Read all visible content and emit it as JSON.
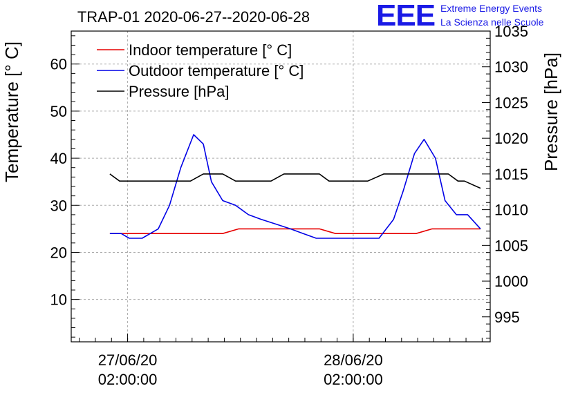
{
  "chart_data": {
    "type": "line",
    "title": "TRAP-01 2020-06-27--2020-06-28",
    "ylabel": "Temperature [° C]",
    "y2label": "Pressure [hPa]",
    "ylim": [
      1,
      67
    ],
    "y2lim": [
      991.5,
      1035
    ],
    "yticks": [
      10,
      20,
      30,
      40,
      50,
      60
    ],
    "y2ticks": [
      995,
      1000,
      1005,
      1010,
      1015,
      1020,
      1025,
      1030,
      1035
    ],
    "xlim": [
      0,
      26
    ],
    "xticks": [
      {
        "pos": 3.5,
        "line1": "27/06/20",
        "line2": "02:00:00"
      },
      {
        "pos": 17.5,
        "line1": "28/06/20",
        "line2": "02:00:00"
      }
    ],
    "grid": true,
    "legend": "top-left",
    "series": [
      {
        "name": "Indoor temperature [° C]",
        "color": "#e60000",
        "axis": "left",
        "x": [
          2.4,
          3.4,
          4.4,
          5.4,
          6.4,
          7.4,
          8.4,
          9.4,
          10.4,
          11.4,
          12.4,
          13.4,
          14.4,
          15.4,
          16.4,
          17.4,
          18.4,
          19.4,
          20.4,
          21.4,
          22.4,
          23.4,
          24.4,
          25.4
        ],
        "values": [
          24,
          24,
          24,
          24,
          24,
          24,
          24,
          24,
          25,
          25,
          25,
          25,
          25,
          25,
          24,
          24,
          24,
          24,
          24,
          24,
          25,
          25,
          25,
          25
        ]
      },
      {
        "name": "Outdoor temperature [° C]",
        "color": "#0000e6",
        "axis": "left",
        "x": [
          2.4,
          3.1,
          3.6,
          4.4,
          5.4,
          6.1,
          6.8,
          7.6,
          8.2,
          8.7,
          9.4,
          10.2,
          11.0,
          11.8,
          12.7,
          13.6,
          14.4,
          15.2,
          15.9,
          16.5,
          17.3,
          18.2,
          19.1,
          20.0,
          20.6,
          21.3,
          21.9,
          22.6,
          23.2,
          23.9,
          24.6,
          25.4
        ],
        "values": [
          24,
          24,
          23,
          23,
          25,
          30,
          38,
          45,
          43,
          35,
          31,
          30,
          28,
          27,
          26,
          25,
          24,
          23,
          23,
          23,
          23,
          23,
          23,
          27,
          33,
          41,
          44,
          40,
          31,
          28,
          28,
          25
        ]
      },
      {
        "name": "Pressure [hPa]",
        "color": "#000000",
        "axis": "right",
        "x": [
          2.4,
          3.0,
          3.4,
          4.4,
          5.4,
          6.4,
          7.4,
          8.2,
          9.4,
          10.2,
          11.4,
          12.4,
          13.2,
          14.4,
          15.4,
          16.0,
          17.4,
          18.4,
          19.4,
          20.4,
          21.4,
          22.4,
          23.4,
          24.0,
          24.4,
          25.4
        ],
        "values": [
          1015,
          1014,
          1014,
          1014,
          1014,
          1014,
          1014,
          1015,
          1015,
          1014,
          1014,
          1014,
          1015,
          1015,
          1015,
          1014,
          1014,
          1014,
          1015,
          1015,
          1015,
          1015,
          1015,
          1014,
          1014,
          1013
        ]
      }
    ]
  },
  "logo": {
    "mark": "EEE",
    "line1": "Extreme Energy Events",
    "line2": "La Scienza nelle Scuole"
  }
}
